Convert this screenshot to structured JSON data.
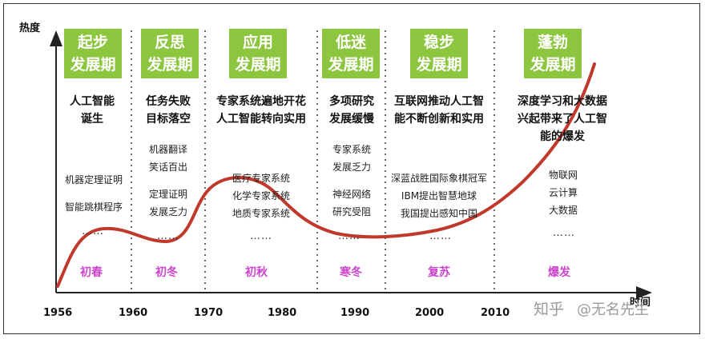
{
  "axis": {
    "y_label": "热度",
    "x_label": "时间"
  },
  "years": [
    "1956",
    "1960",
    "1970",
    "1980",
    "1990",
    "2000",
    "2010"
  ],
  "stages": [
    {
      "line1": "起步",
      "line2": "发展期"
    },
    {
      "line1": "反思",
      "line2": "发展期"
    },
    {
      "line1": "应用",
      "line2": "发展期"
    },
    {
      "line1": "低迷",
      "line2": "发展期"
    },
    {
      "line1": "稳步",
      "line2": "发展期"
    },
    {
      "line1": "蓬勃",
      "line2": "发展期"
    }
  ],
  "events": [
    {
      "line1": "人工智能",
      "line2": "诞生"
    },
    {
      "line1": "任务失败",
      "line2": "目标落空"
    },
    {
      "line1": "专家系统遍地开花",
      "line2": "人工智能转向实用"
    },
    {
      "line1": "多项研究",
      "line2": "发展缓慢"
    },
    {
      "line1": "互联网推动人工智",
      "line2": "能不断创新和实用"
    },
    {
      "line1": "深度学习和大数据",
      "line2": "兴起带来了人工智",
      "line3": "能的爆发"
    }
  ],
  "items": {
    "s1": [
      "机器定理证明",
      "智能跳棋程序"
    ],
    "s2a": [
      "机器翻译",
      "笑话百出"
    ],
    "s2b": [
      "定理证明",
      "发展乏力"
    ],
    "s3": [
      "医疗专家系统",
      "化学专家系统",
      "地质专家系统"
    ],
    "s4a": [
      "专家系统",
      "发展乏力"
    ],
    "s4b": [
      "神经网络",
      "研究受阻"
    ],
    "s5": [
      "深蓝战胜国际象棋冠军",
      "IBM提出智慧地球",
      "我国提出感知中国"
    ],
    "s6": [
      "物联网",
      "云计算",
      "大数据"
    ]
  },
  "ellipsis": "……",
  "seasons": [
    "初春",
    "初冬",
    "初秋",
    "寒冬",
    "复苏",
    "爆发"
  ],
  "watermark": {
    "text": "知乎",
    "handle": "@无名先生"
  },
  "colors": {
    "stage_bg": "#8cc63f",
    "curve": "#c0392b",
    "season_text": "#cc44cc"
  }
}
